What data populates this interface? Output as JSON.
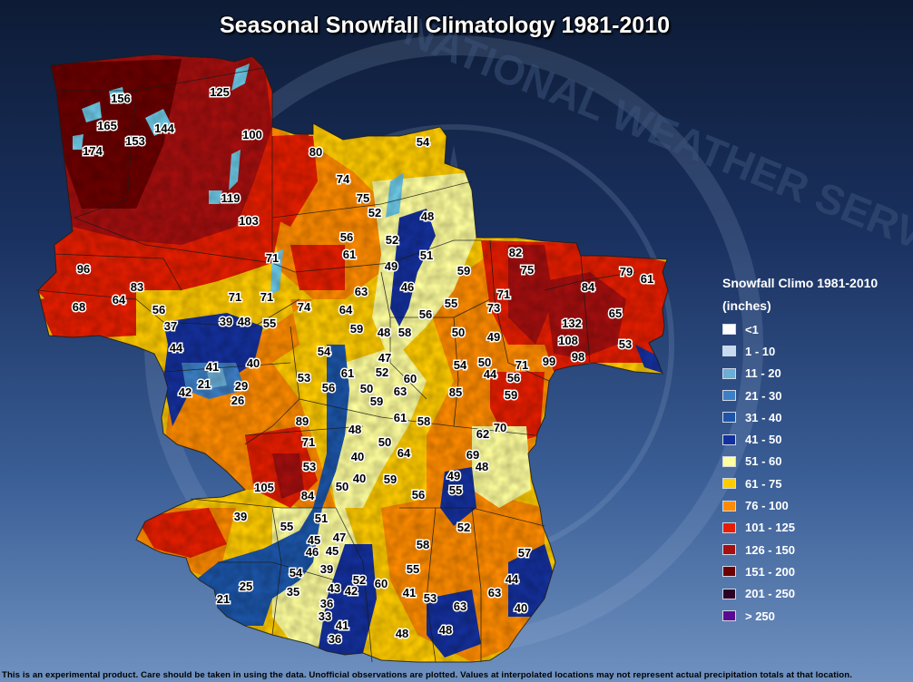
{
  "title": "Seasonal Snowfall Climatology 1981-2010",
  "watermark": "NATIONAL WEATHER SERVICE",
  "legend": {
    "title": "Snowfall Climo 1981-2010",
    "units": "(inches)",
    "items": [
      {
        "label": "<1",
        "color": "#ffffff"
      },
      {
        "label": "1 - 10",
        "color": "#c6dbef"
      },
      {
        "label": "11 - 20",
        "color": "#6baed6"
      },
      {
        "label": "21 - 30",
        "color": "#3d7fc4"
      },
      {
        "label": "31 - 40",
        "color": "#1c55a8"
      },
      {
        "label": "41 - 50",
        "color": "#14309c"
      },
      {
        "label": "51 - 60",
        "color": "#ffff9e"
      },
      {
        "label": "61 - 75",
        "color": "#ffcc00"
      },
      {
        "label": "76 - 100",
        "color": "#ff8c00"
      },
      {
        "label": "101 - 125",
        "color": "#e61e00"
      },
      {
        "label": "126 - 150",
        "color": "#a50f0f"
      },
      {
        "label": "151 - 200",
        "color": "#6b0000"
      },
      {
        "label": "201 - 250",
        "color": "#2d0026"
      },
      {
        "label": "> 250",
        "color": "#5a0a90"
      }
    ]
  },
  "observations": [
    "156",
    "125",
    "165",
    "144",
    "153",
    "174",
    "100",
    "119",
    "103",
    "80",
    "74",
    "75",
    "54",
    "52",
    "48",
    "52",
    "56",
    "61",
    "71",
    "49",
    "51",
    "59",
    "96",
    "83",
    "64",
    "68",
    "56",
    "71",
    "71",
    "63",
    "46",
    "56",
    "55",
    "74",
    "64",
    "59",
    "48",
    "58",
    "37",
    "39",
    "48",
    "55",
    "44",
    "41",
    "40",
    "54",
    "47",
    "61",
    "52",
    "56",
    "60",
    "63",
    "53",
    "50",
    "59",
    "21",
    "29",
    "42",
    "26",
    "89",
    "48",
    "61",
    "58",
    "71",
    "50",
    "64",
    "53",
    "40",
    "59",
    "105",
    "84",
    "50",
    "40",
    "82",
    "75",
    "71",
    "73",
    "84",
    "79",
    "61",
    "65",
    "132",
    "108",
    "98",
    "99",
    "53",
    "50",
    "49",
    "54",
    "50",
    "44",
    "56",
    "85",
    "71",
    "59",
    "62",
    "70",
    "69",
    "48",
    "49",
    "55",
    "56",
    "39",
    "55",
    "51",
    "45",
    "47",
    "46",
    "45",
    "39",
    "54",
    "52",
    "43",
    "42",
    "60",
    "35",
    "36",
    "33",
    "41",
    "36",
    "25",
    "21",
    "55",
    "58",
    "52",
    "41",
    "53",
    "63",
    "48",
    "48",
    "57",
    "44",
    "63",
    "40"
  ],
  "disclaimer": "This is an experimental product. Care should be taken in using the data. Unofficial observations are plotted. Values at interpolated locations may not represent actual precipitation totals at that location."
}
